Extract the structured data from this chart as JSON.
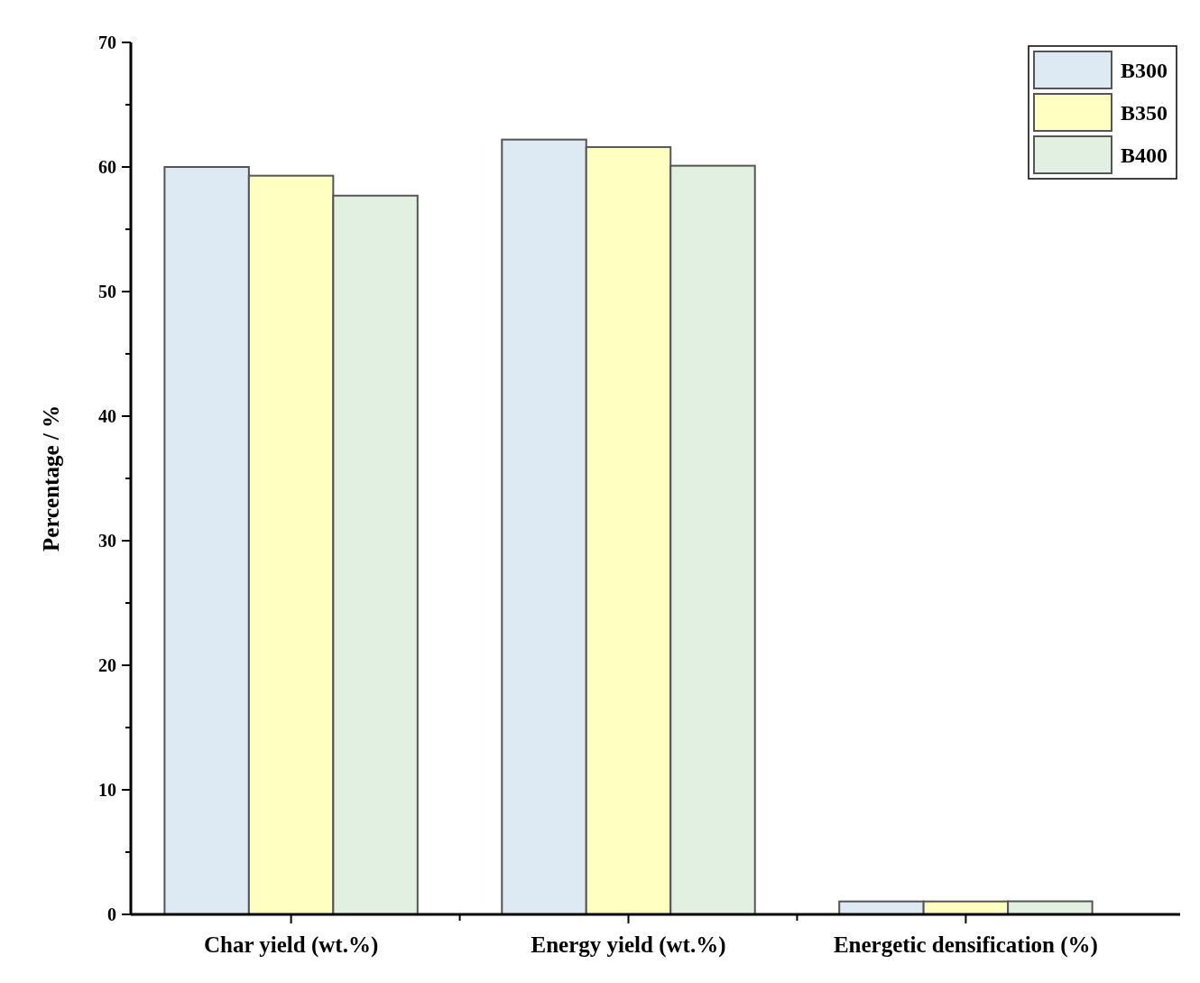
{
  "chart_data": {
    "type": "bar",
    "ylabel": "Percentage / %",
    "categories": [
      "Char yield (wt.%)",
      "Energy yield (wt.%)",
      "Energetic densification (%)"
    ],
    "series": [
      {
        "name": "B300",
        "color": "#dde9f3",
        "values": [
          60.0,
          62.2,
          1.04
        ]
      },
      {
        "name": "B350",
        "color": "#ffffc2",
        "values": [
          59.3,
          61.6,
          1.04
        ]
      },
      {
        "name": "B400",
        "color": "#e1f0e1",
        "values": [
          57.7,
          60.1,
          1.05
        ]
      }
    ],
    "ylim": [
      0,
      70
    ],
    "yticks": [
      0,
      10,
      20,
      30,
      40,
      50,
      60,
      70
    ],
    "grid": false,
    "legend": "top right"
  }
}
